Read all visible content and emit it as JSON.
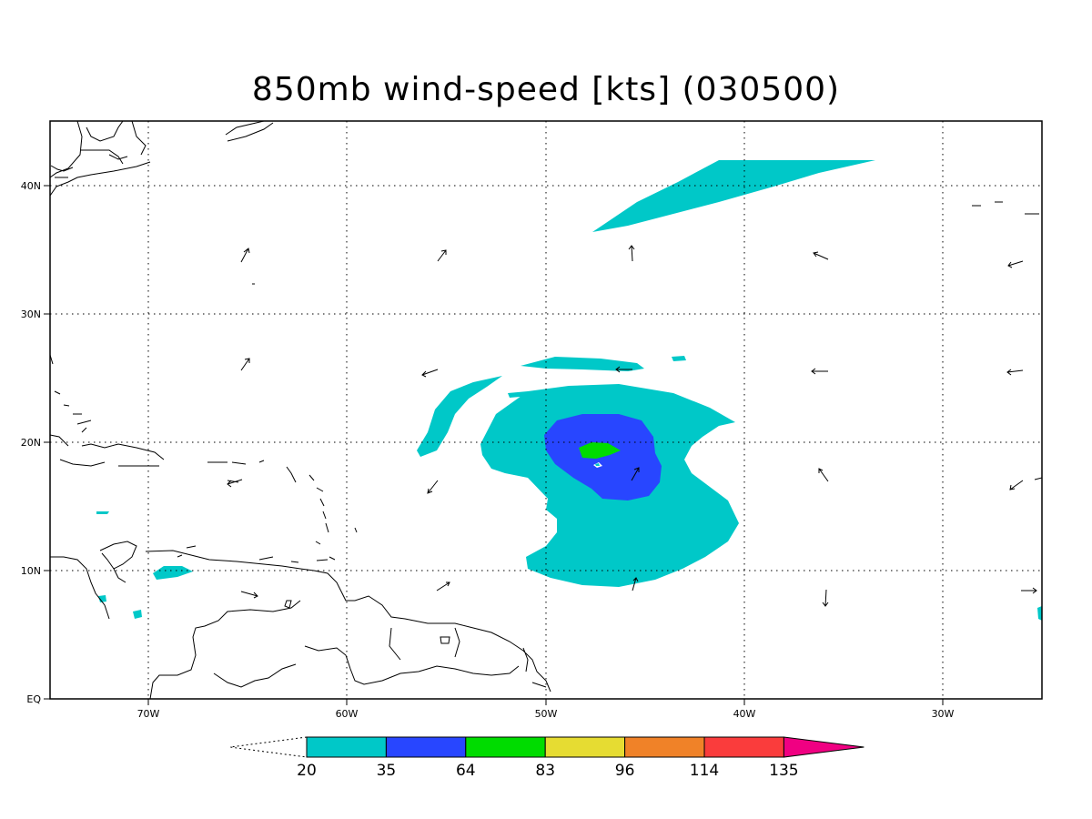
{
  "title": "850mb wind-speed [kts] (030500)",
  "lon_labels": [
    "70W",
    "60W",
    "50W",
    "40W",
    "30W"
  ],
  "lat_labels": [
    "40N",
    "30N",
    "20N",
    "10N",
    "EQ"
  ],
  "colorbar": {
    "labels": [
      "20",
      "35",
      "64",
      "83",
      "96",
      "114",
      "135"
    ],
    "colors": [
      "#00c8c8",
      "#2846ff",
      "#00dc00",
      "#e6dc32",
      "#f08228",
      "#fa3c3c",
      "#f00082"
    ]
  },
  "colors": {
    "wind_20_35": "#00c8c8",
    "wind_35_64": "#2846ff",
    "wind_64_83": "#00dc00"
  }
}
